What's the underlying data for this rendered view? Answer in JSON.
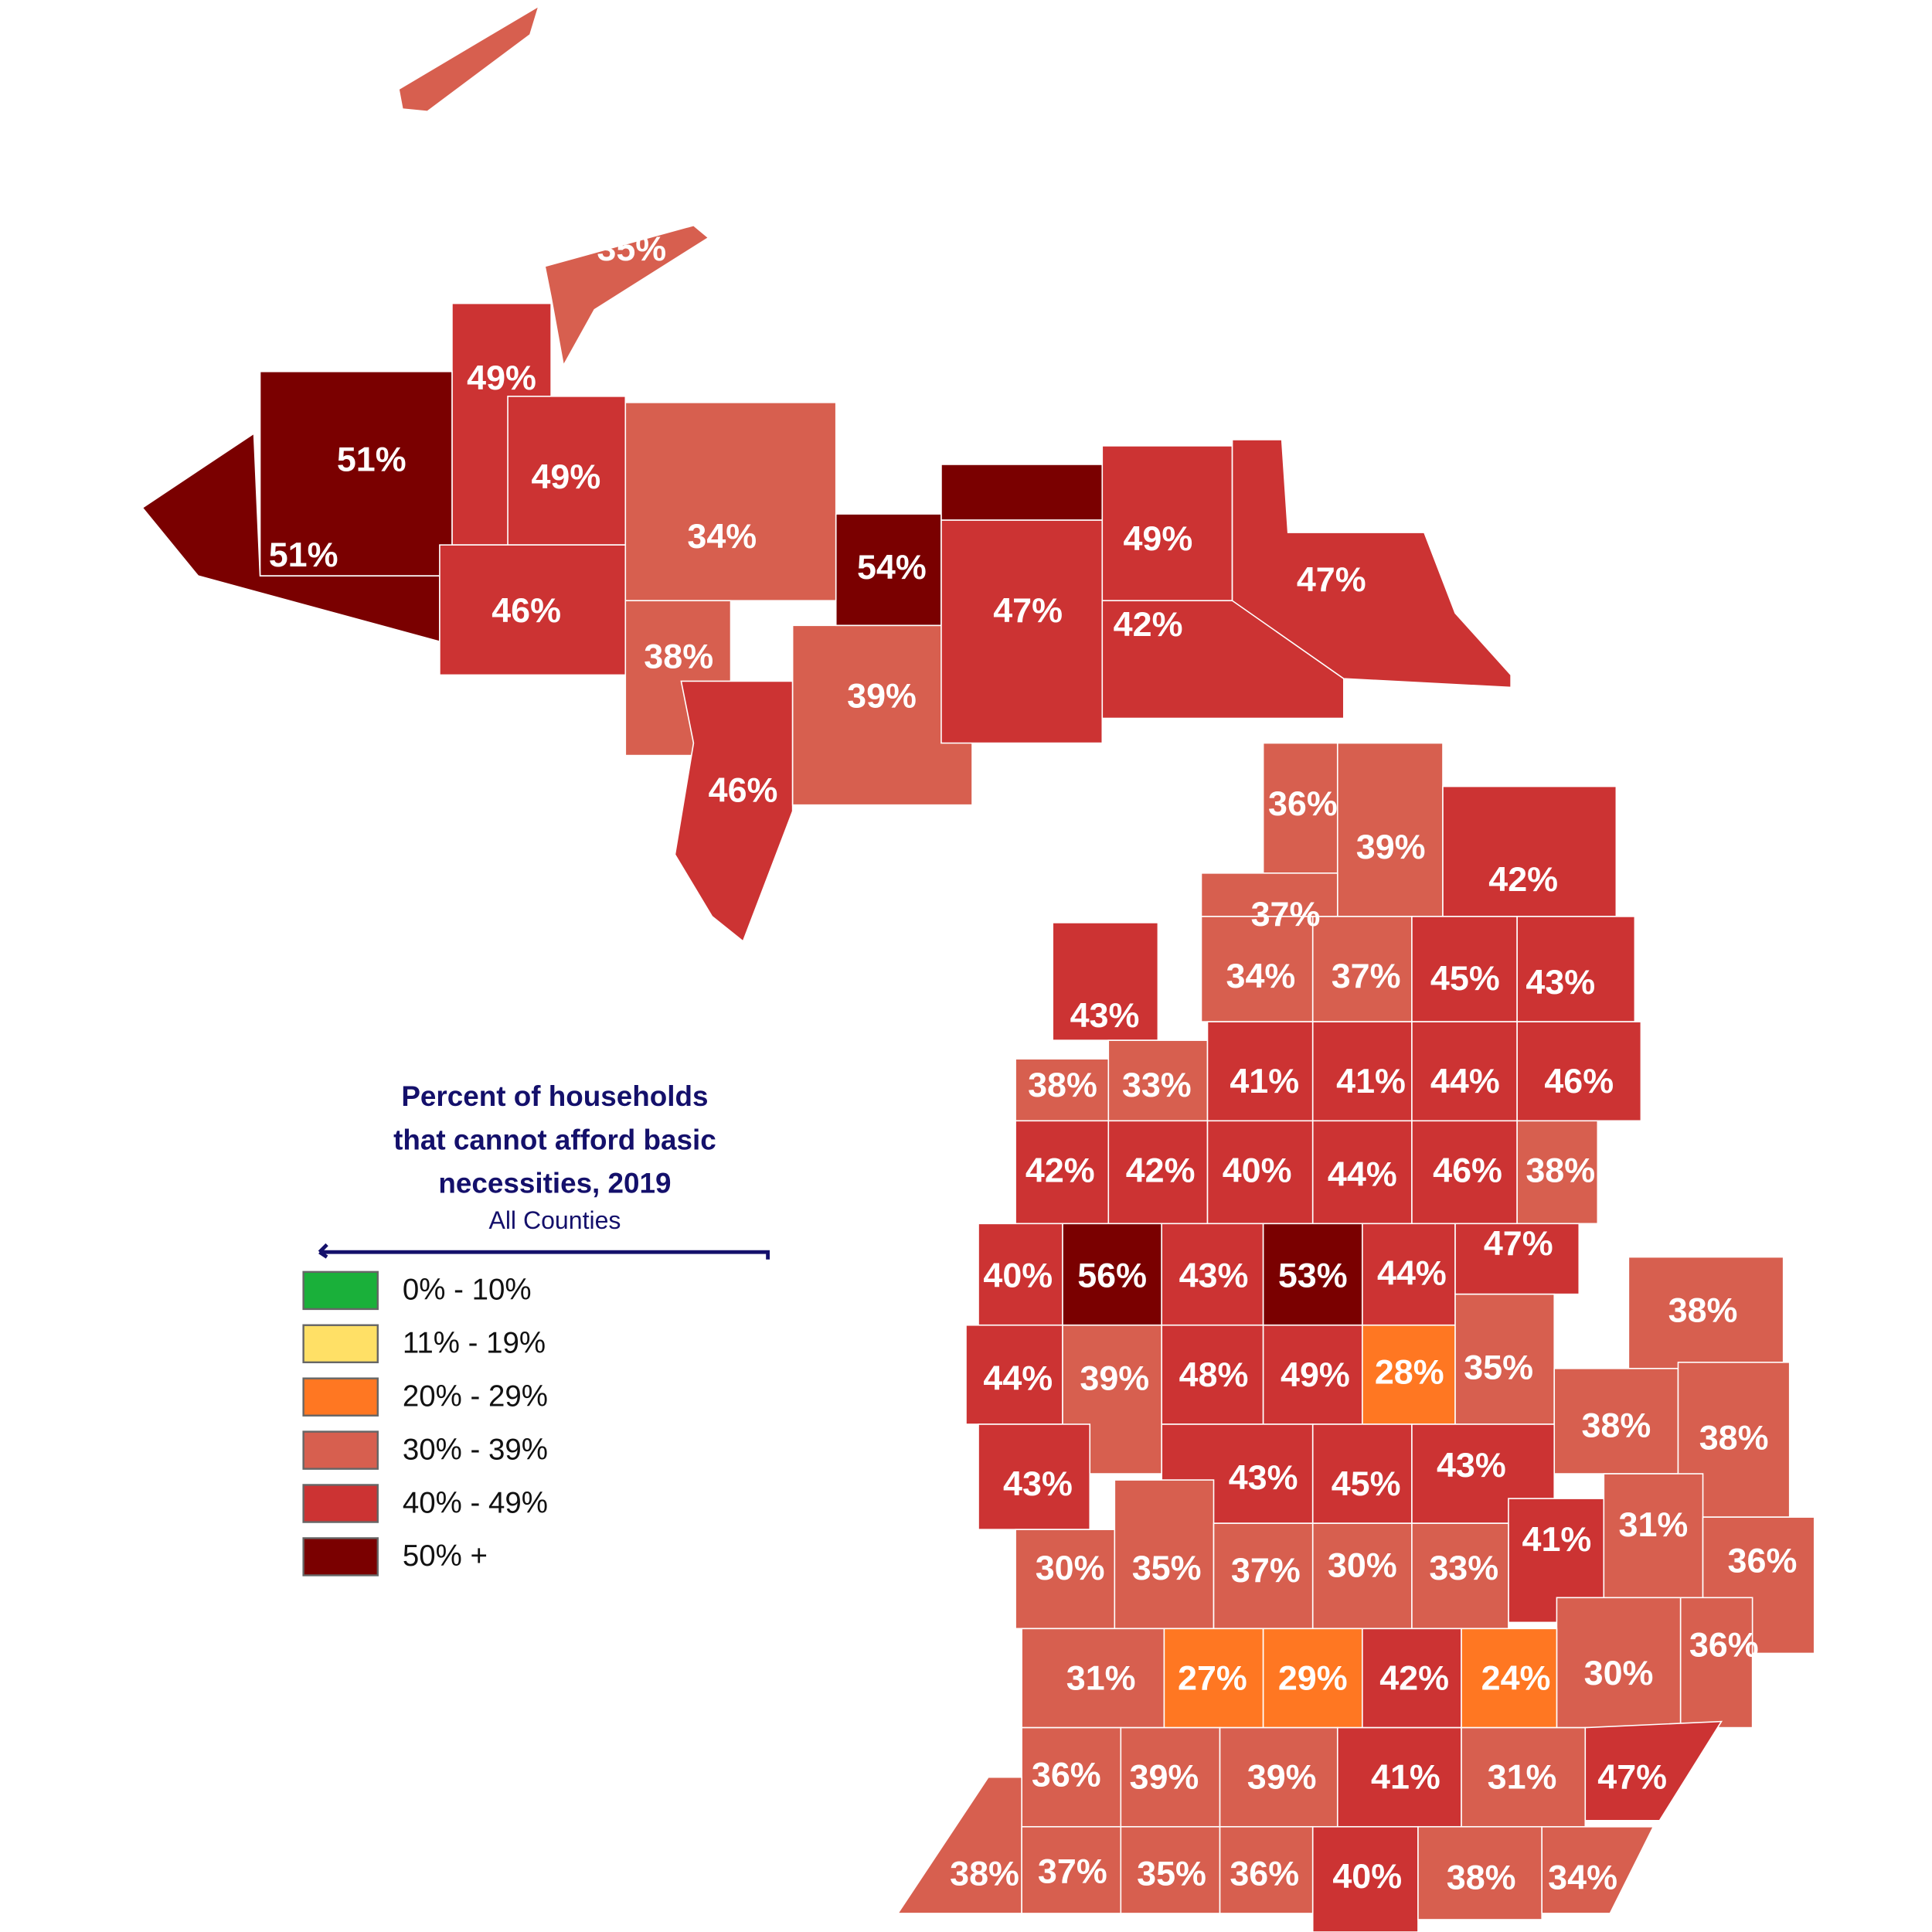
{
  "legend": {
    "title_lines": [
      "Percent of households",
      "that cannot afford basic",
      "necessities, 2019"
    ],
    "subtitle": "All Counties",
    "items": [
      {
        "label": "0% - 10%",
        "min": 0,
        "color": "#1ab03a"
      },
      {
        "label": "11% - 19%",
        "min": 11,
        "color": "#ffe066"
      },
      {
        "label": "20% - 29%",
        "min": 20,
        "color": "#ff7722"
      },
      {
        "label": "30% - 39%",
        "min": 30,
        "color": "#d75f4f"
      },
      {
        "label": "40% - 49%",
        "min": 40,
        "color": "#cc3333"
      },
      {
        "label": "50% +",
        "min": 50,
        "color": "#7a0000"
      }
    ]
  },
  "counties": {
    "values": [
      35,
      49,
      51,
      51,
      49,
      46,
      34,
      38,
      46,
      39,
      54,
      47,
      49,
      42,
      47,
      36,
      39,
      42,
      37,
      34,
      37,
      45,
      43,
      43,
      38,
      33,
      41,
      41,
      44,
      46,
      42,
      42,
      40,
      44,
      46,
      38,
      40,
      56,
      43,
      53,
      44,
      47,
      44,
      39,
      48,
      49,
      28,
      35,
      38,
      38,
      38,
      43,
      43,
      45,
      43,
      41,
      31,
      36,
      30,
      35,
      37,
      30,
      33,
      30,
      36,
      31,
      27,
      29,
      42,
      24,
      36,
      39,
      39,
      41,
      31,
      47,
      38,
      37,
      35,
      36,
      40,
      38,
      34
    ],
    "value_labels": [
      "35%",
      "49%",
      "51%",
      "51%",
      "49%",
      "46%",
      "34%",
      "38%",
      "46%",
      "39%",
      "54%",
      "47%",
      "49%",
      "42%",
      "47%",
      "36%",
      "39%",
      "42%",
      "37%",
      "34%",
      "37%",
      "45%",
      "43%",
      "43%",
      "38%",
      "33%",
      "41%",
      "41%",
      "44%",
      "46%",
      "42%",
      "42%",
      "40%",
      "44%",
      "46%",
      "38%",
      "40%",
      "56%",
      "43%",
      "53%",
      "44%",
      "47%",
      "44%",
      "39%",
      "48%",
      "49%",
      "28%",
      "35%",
      "38%",
      "38%",
      "38%",
      "43%",
      "43%",
      "45%",
      "43%",
      "41%",
      "31%",
      "36%",
      "30%",
      "35%",
      "37%",
      "30%",
      "33%",
      "30%",
      "36%",
      "31%",
      "27%",
      "29%",
      "42%",
      "24%",
      "36%",
      "39%",
      "39%",
      "41%",
      "31%",
      "47%",
      "38%",
      "37%",
      "35%",
      "36%",
      "40%",
      "38%",
      "34%"
    ]
  }
}
